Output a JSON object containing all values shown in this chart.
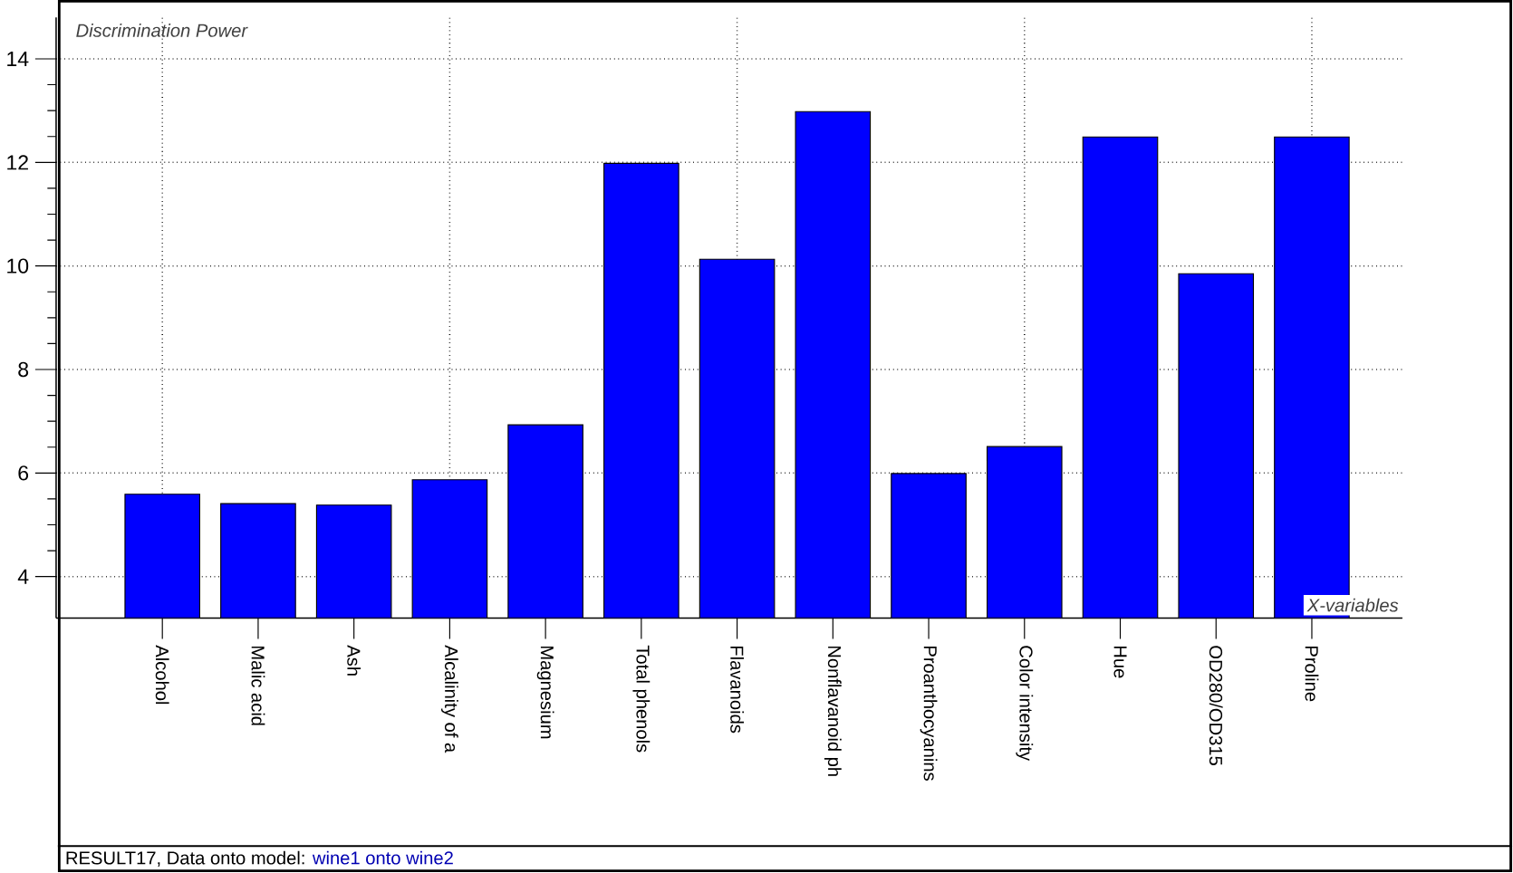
{
  "chart_data": {
    "type": "bar",
    "ylabel": "Discrimination Power",
    "xlabel": "X-variables",
    "categories": [
      "Alcohol",
      "Malic acid",
      "Ash",
      "Alcalinity of a",
      "Magnesium",
      "Total phenols",
      "Flavanoids",
      "Nonflavanoid ph",
      "Proanthocyanins",
      "Color intensity",
      "Hue",
      "OD280/OD315",
      "Proline"
    ],
    "values": [
      5.59,
      5.41,
      5.38,
      5.87,
      6.93,
      11.98,
      10.13,
      12.98,
      5.99,
      6.51,
      12.49,
      9.85,
      12.49
    ],
    "color": "#0000ff",
    "ylim": [
      3.2,
      14.8
    ],
    "yticks": [
      4,
      6,
      8,
      10,
      12,
      14
    ],
    "grid": true,
    "annotations": [
      "RESULT17, Data onto model:",
      "wine1 onto wine2"
    ]
  }
}
